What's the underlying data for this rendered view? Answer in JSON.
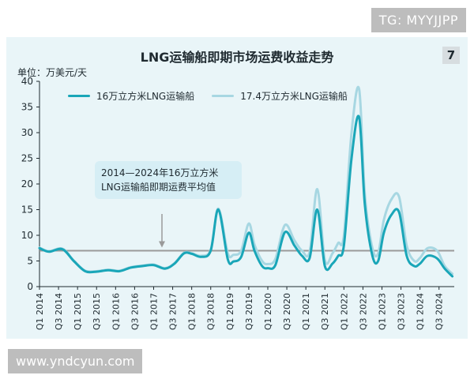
{
  "watermark_top": "TG: MYYJJPP",
  "watermark_bottom": "www.yndcyun.com",
  "badge": "7",
  "chart_data": {
    "type": "line",
    "title": "LNG运输船即期市场运费收益走势",
    "ylabel": "单位：万美元/天",
    "ylim": [
      0,
      40
    ],
    "yticks": [
      0,
      5,
      10,
      15,
      20,
      25,
      30,
      35,
      40
    ],
    "xticks": [
      "Q1 2014",
      "Q3 2014",
      "Q1 2015",
      "Q3 2015",
      "Q1 2016",
      "Q3 2016",
      "Q1 2017",
      "Q3 2017",
      "Q1 2018",
      "Q3 2018",
      "Q1 2019",
      "Q3 2019",
      "Q1 2020",
      "Q3 2020",
      "Q1 2021",
      "Q3 2021",
      "Q1 2022",
      "Q3 2022",
      "Q1 2023",
      "Q3 2023",
      "Q1 2024",
      "Q3 2024"
    ],
    "series": [
      {
        "name": "16万立方米LNG运输船",
        "color": "#1aa6b8",
        "x": [
          2014.0,
          2014.25,
          2014.6,
          2014.9,
          2015.2,
          2015.5,
          2015.8,
          2016.1,
          2016.4,
          2016.7,
          2017.0,
          2017.3,
          2017.55,
          2017.8,
          2018.0,
          2018.25,
          2018.5,
          2018.7,
          2018.95,
          2019.1,
          2019.3,
          2019.5,
          2019.65,
          2019.85,
          2020.0,
          2020.2,
          2020.45,
          2020.7,
          2020.9,
          2021.1,
          2021.3,
          2021.5,
          2021.7,
          2021.85,
          2022.0,
          2022.2,
          2022.4,
          2022.55,
          2022.75,
          2022.9,
          2023.05,
          2023.25,
          2023.45,
          2023.65,
          2023.85,
          2024.0,
          2024.2,
          2024.45,
          2024.65,
          2024.85
        ],
        "y": [
          7.5,
          6.8,
          7.3,
          5.0,
          3.0,
          2.9,
          3.2,
          3.0,
          3.7,
          4.0,
          4.2,
          3.5,
          4.5,
          6.5,
          6.4,
          5.8,
          7.0,
          15.0,
          5.3,
          4.9,
          5.8,
          10.5,
          7.0,
          4.0,
          3.6,
          4.2,
          10.6,
          8.0,
          6.0,
          5.6,
          15.0,
          4.0,
          4.5,
          6.0,
          8.0,
          25.0,
          33.0,
          16.0,
          6.0,
          5.0,
          10.5,
          14.0,
          14.5,
          6.0,
          4.0,
          4.5,
          6.0,
          5.5,
          3.5,
          2.0
        ]
      },
      {
        "name": "17.4万立方米LNG运输船",
        "color": "#a7d7e2",
        "x": [
          2014.0,
          2014.25,
          2014.6,
          2014.9,
          2015.2,
          2015.5,
          2015.8,
          2016.1,
          2016.4,
          2016.7,
          2017.0,
          2017.3,
          2017.55,
          2017.8,
          2018.0,
          2018.25,
          2018.5,
          2018.7,
          2018.95,
          2019.1,
          2019.3,
          2019.5,
          2019.65,
          2019.85,
          2020.0,
          2020.2,
          2020.45,
          2020.7,
          2020.9,
          2021.1,
          2021.3,
          2021.5,
          2021.7,
          2021.85,
          2022.0,
          2022.2,
          2022.4,
          2022.55,
          2022.75,
          2022.9,
          2023.05,
          2023.25,
          2023.45,
          2023.65,
          2023.85,
          2024.0,
          2024.2,
          2024.45,
          2024.65,
          2024.85
        ],
        "y": [
          7.6,
          6.9,
          7.4,
          5.1,
          3.1,
          3.0,
          3.3,
          3.1,
          3.8,
          4.1,
          4.3,
          3.6,
          4.6,
          6.6,
          6.5,
          6.0,
          7.2,
          15.2,
          6.5,
          6.2,
          7.0,
          12.3,
          8.2,
          5.0,
          4.4,
          5.4,
          12.0,
          9.0,
          7.0,
          6.8,
          19.0,
          5.2,
          6.5,
          8.5,
          10.0,
          30.0,
          38.5,
          18.0,
          7.5,
          6.5,
          13.0,
          17.0,
          17.5,
          8.0,
          5.0,
          5.6,
          7.5,
          7.0,
          4.0,
          2.5
        ]
      }
    ],
    "average": {
      "value": 7.0,
      "color": "#9a9a9a",
      "label_line1": "2014—2024年16万立方米",
      "label_line2": "LNG运输船即期运费平均值"
    }
  }
}
